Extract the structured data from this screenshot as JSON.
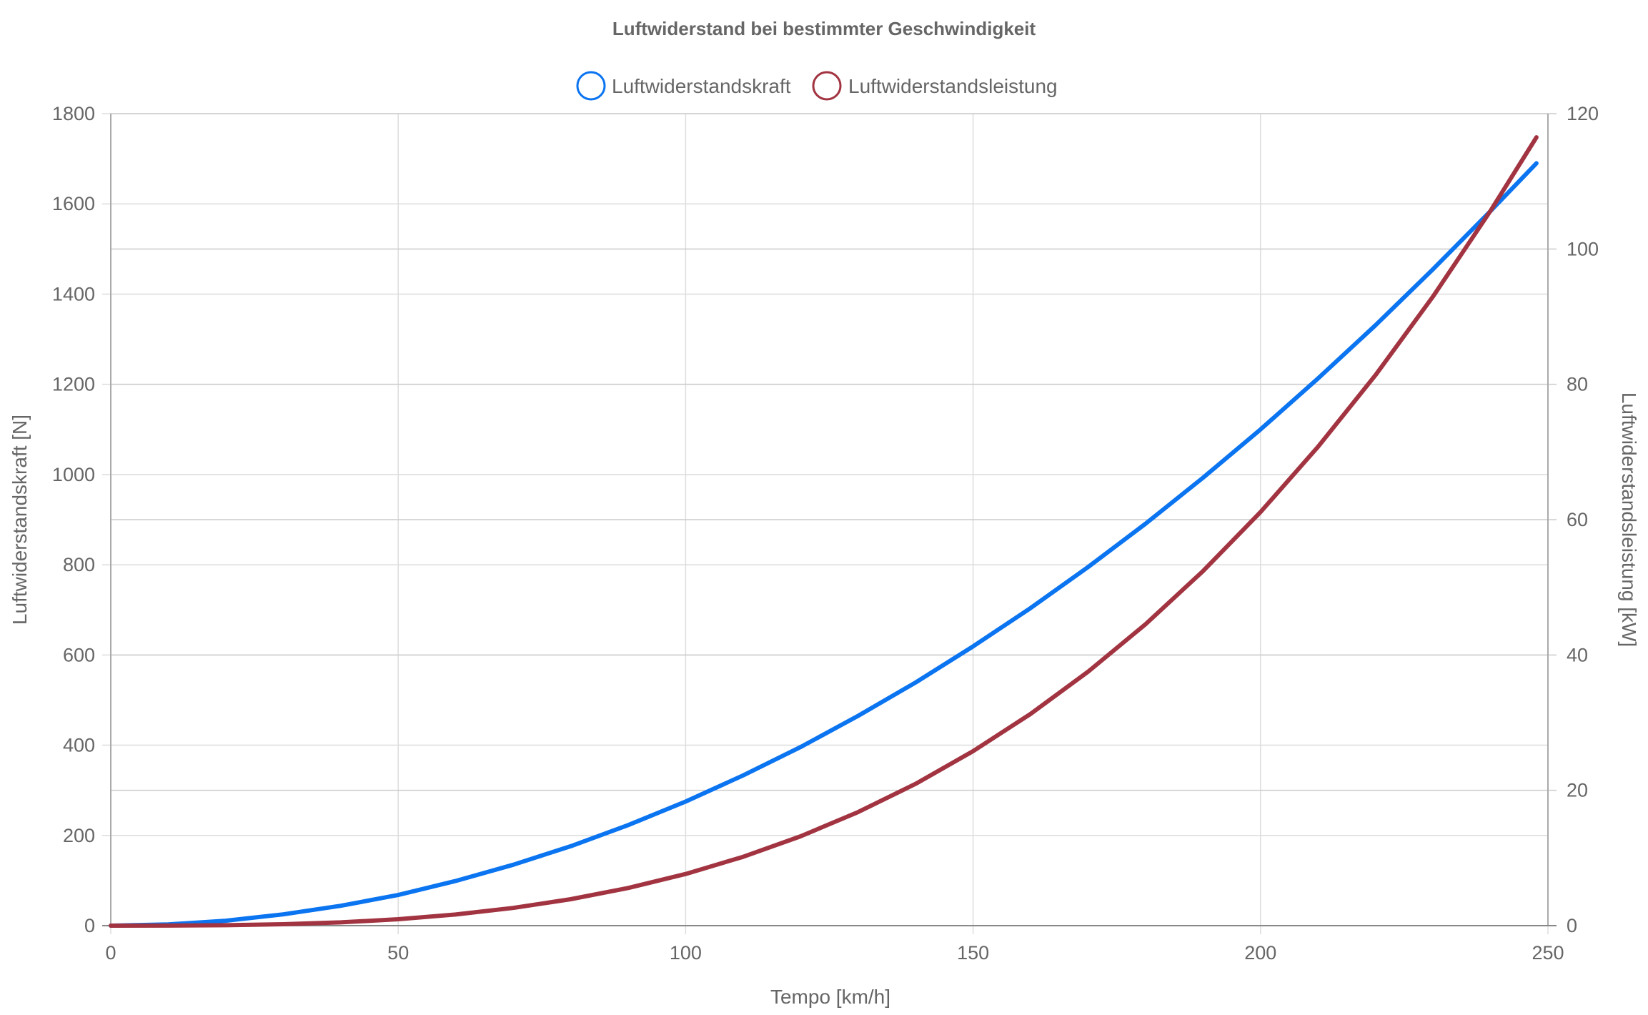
{
  "chart_data": {
    "type": "line",
    "title": "Luftwiderstand bei bestimmter Geschwindigkeit",
    "xlabel": "Tempo [km/h]",
    "ylabel": "Luftwiderstandskraft [N]",
    "y2label": "Luftwiderstandsleistung [kW]",
    "xlim": [
      0,
      250
    ],
    "ylim": [
      0,
      1800
    ],
    "y2lim": [
      0,
      120
    ],
    "x_ticks": [
      "0",
      "50",
      "100",
      "150",
      "200",
      "250"
    ],
    "y_ticks": [
      "0",
      "200",
      "400",
      "600",
      "800",
      "1000",
      "1200",
      "1400",
      "1600",
      "1800"
    ],
    "y2_ticks": [
      "0",
      "20",
      "40",
      "60",
      "80",
      "100",
      "120"
    ],
    "grid": true,
    "legend_position": "top-center",
    "series": [
      {
        "name": "Luftwiderstandskraft",
        "axis": "left",
        "color": "#0b74f0",
        "x": [
          0,
          10,
          20,
          30,
          40,
          50,
          60,
          70,
          80,
          90,
          100,
          110,
          120,
          130,
          140,
          150,
          160,
          170,
          180,
          190,
          200,
          210,
          220,
          230,
          240,
          248
        ],
        "y": [
          0,
          2.7,
          11,
          25,
          44,
          68,
          99,
          135,
          176,
          223,
          275,
          333,
          396,
          465,
          539,
          619,
          704,
          795,
          891,
          993,
          1100,
          1213,
          1331,
          1455,
          1584,
          1690
        ]
      },
      {
        "name": "Luftwiderstandsleistung",
        "axis": "right",
        "color": "#a23441",
        "x": [
          0,
          10,
          20,
          30,
          40,
          50,
          60,
          70,
          80,
          90,
          100,
          110,
          120,
          130,
          140,
          150,
          160,
          170,
          180,
          190,
          200,
          210,
          220,
          230,
          240,
          248
        ],
        "y": [
          0,
          0.01,
          0.06,
          0.21,
          0.49,
          0.95,
          1.65,
          2.62,
          3.91,
          5.57,
          7.64,
          10.17,
          13.2,
          16.79,
          20.96,
          25.78,
          31.29,
          37.53,
          44.55,
          52.4,
          61.12,
          70.76,
          81.36,
          92.97,
          105.63,
          116.5
        ]
      }
    ]
  }
}
